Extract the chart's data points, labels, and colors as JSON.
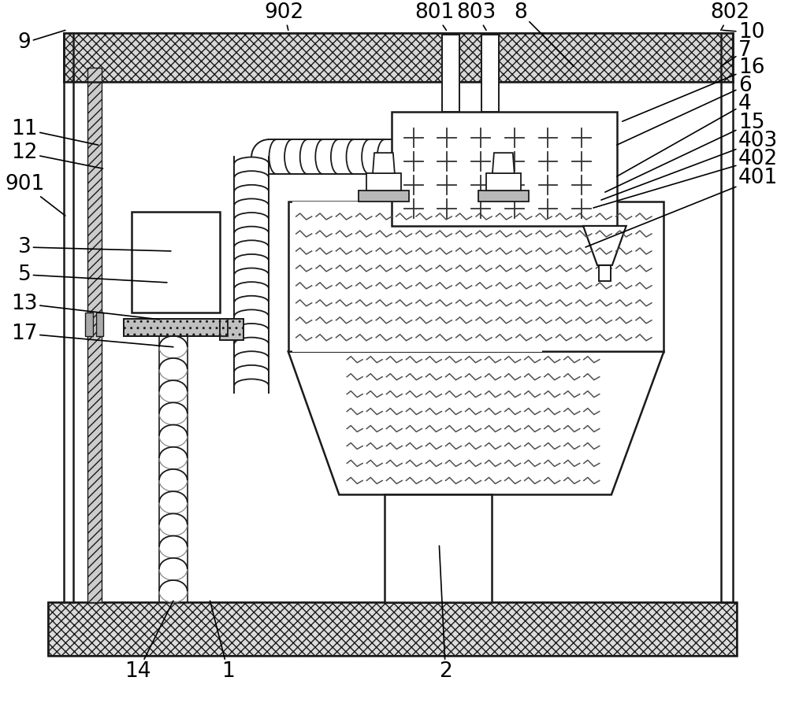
{
  "bg": "#ffffff",
  "lc": "#1a1a1a",
  "lw": 1.6,
  "figsize": [
    10.0,
    8.93
  ],
  "dpi": 100
}
